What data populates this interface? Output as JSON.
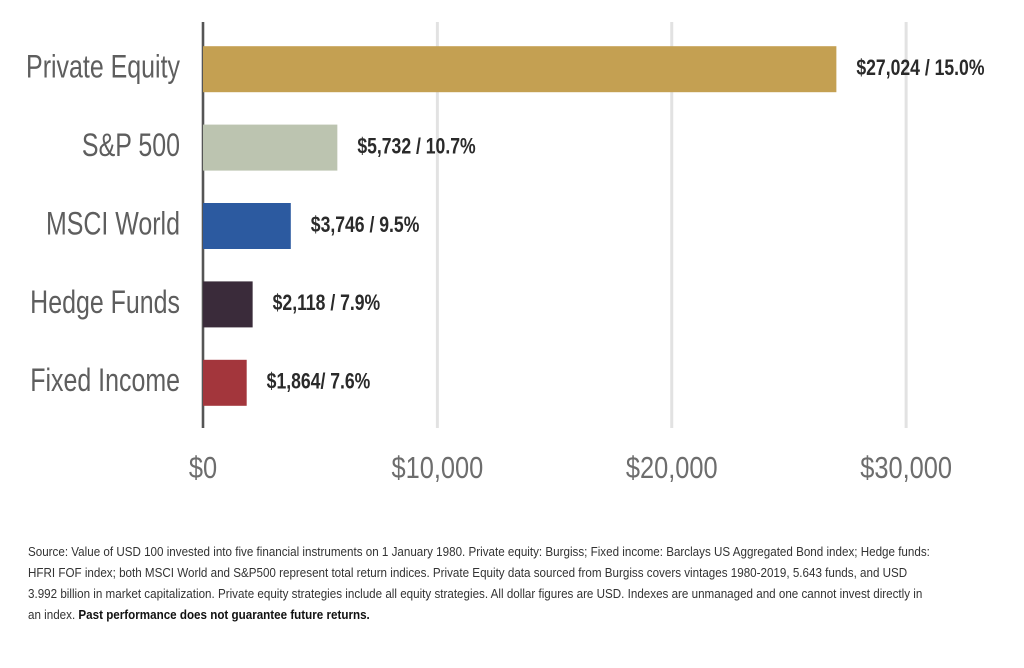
{
  "chart_data": {
    "type": "hbar",
    "categories": [
      "Private Equity",
      "S&P 500",
      "MSCI World",
      "Hedge Funds",
      "Fixed Income"
    ],
    "values": [
      27024,
      5732,
      3746,
      2118,
      1864
    ],
    "value_labels": [
      "$27,024 / 15.0%",
      "$5,732 / 10.7%",
      "$3,746 / 9.5%",
      "$2,118 / 7.9%",
      "$1,864/ 7.6%"
    ],
    "colors": [
      "#c4a052",
      "#bcc4b0",
      "#2c5aa0",
      "#3a2b3a",
      "#a3363c"
    ],
    "xlim": [
      0,
      32000
    ],
    "xticks": [
      {
        "value": 0,
        "label": "$0"
      },
      {
        "value": 10000,
        "label": "$10,000"
      },
      {
        "value": 20000,
        "label": "$20,000"
      },
      {
        "value": 30000,
        "label": "$30,000"
      }
    ],
    "grid": true
  },
  "footnote": {
    "text": "Source: Value of USD 100 invested into five financial instruments on 1 January 1980. Private equity: Burgiss; Fixed income: Barclays US Aggregated Bond index; Hedge funds: HFRI FOF index; both MSCI World and S&P500 represent total return indices. Private Equity data sourced from Burgiss covers vintages 1980-2019, 5.643 funds, and USD 3.992 billion in market capitalization. Private equity strategies include all equity strategies. All dollar figures are USD. Indexes are unmanaged and one cannot invest directly in an index.",
    "emphasis": "Past performance does not guarantee future returns."
  }
}
